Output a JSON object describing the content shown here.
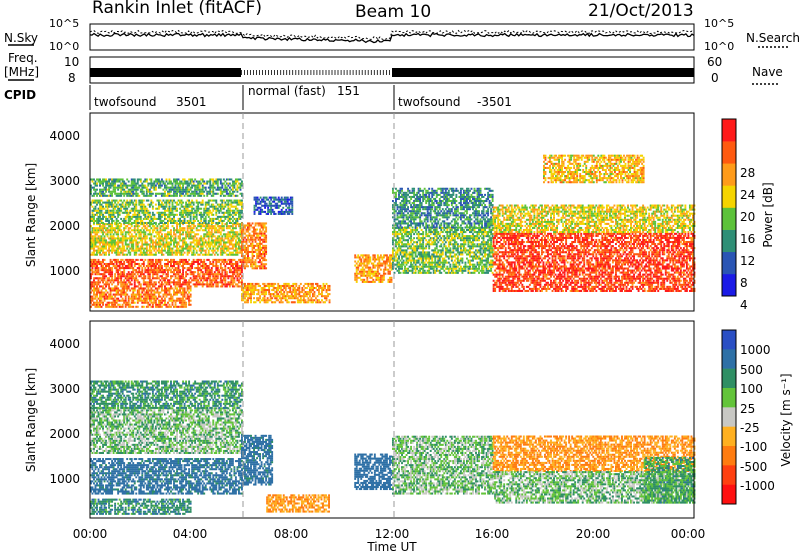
{
  "header": {
    "title": "Rankin Inlet (fitACF)",
    "beam": "Beam 10",
    "date": "21/Oct/2013"
  },
  "top_panels": {
    "nsky_label": "N.Sky",
    "nsearch_label": "N.Search",
    "nsky_ticks": [
      "10^5",
      "10^0"
    ],
    "nsearch_ticks": [
      "10^5",
      "10^0"
    ],
    "freq_label_1": "Freq.",
    "freq_label_2": "[MHz]",
    "freq_ticks": [
      "10",
      "8"
    ],
    "nave_label": "Nave",
    "nave_ticks": [
      "60",
      "0"
    ],
    "cpid_label": "CPID",
    "modes": [
      {
        "name": "twofsound",
        "id": "3501",
        "start": 0,
        "end": 6
      },
      {
        "name": "normal (fast)",
        "id": "151",
        "start": 6,
        "end": 12
      },
      {
        "name": "twofsound",
        "id": "-3501",
        "start": 12,
        "end": 24
      }
    ]
  },
  "power_colorbar": {
    "label": "Power [dB]",
    "ticks": [
      "28",
      "24",
      "20",
      "16",
      "12",
      "8",
      "4"
    ],
    "colors": [
      "#1b1be6",
      "#2a55b4",
      "#2f8f76",
      "#5cc23a",
      "#f5d400",
      "#ff9b1a",
      "#ff5a10",
      "#ff1a1a"
    ]
  },
  "velocity_colorbar": {
    "label": "Velocity [m s⁻¹]",
    "ticks": [
      "1000",
      "500",
      "100",
      "25",
      "-25",
      "-100",
      "-500",
      "-1000"
    ],
    "colors": [
      "#2a4fc4",
      "#2e70a6",
      "#2f8f64",
      "#63c43a",
      "#c8c8c4",
      "#ffb020",
      "#ff7c10",
      "#ff4010",
      "#ff1010"
    ]
  },
  "axes": {
    "ylabel": "Slant Range [km]",
    "xlabel": "Time UT",
    "yticks": [
      "4000",
      "3000",
      "2000",
      "1000"
    ],
    "xticks": [
      "00:00",
      "04:00",
      "08:00",
      "12:00",
      "16:00",
      "20:00",
      "00:00"
    ]
  },
  "chart_data": [
    {
      "type": "heatmap",
      "name": "power",
      "x_range_hours": [
        0,
        24
      ],
      "y_range_km": [
        180,
        4550
      ],
      "x_tick_hours": [
        0,
        4,
        8,
        12,
        16,
        20,
        24
      ],
      "y_tick_km": [
        1000,
        2000,
        3000,
        4000
      ],
      "colorbar_range_db": [
        0,
        32
      ],
      "regions": [
        {
          "t": [
            0,
            6
          ],
          "r": [
            700,
            1300
          ],
          "power_db": 26
        },
        {
          "t": [
            0,
            6
          ],
          "r": [
            1400,
            2100
          ],
          "power_db": 18
        },
        {
          "t": [
            0,
            6
          ],
          "r": [
            2100,
            2600
          ],
          "power_db": 14
        },
        {
          "t": [
            0,
            6
          ],
          "r": [
            2700,
            3100
          ],
          "power_db": 12
        },
        {
          "t": [
            0,
            4
          ],
          "r": [
            250,
            700
          ],
          "power_db": 24
        },
        {
          "t": [
            6,
            7
          ],
          "r": [
            1100,
            2100
          ],
          "power_db": 24
        },
        {
          "t": [
            6,
            9.5
          ],
          "r": [
            350,
            800
          ],
          "power_db": 22
        },
        {
          "t": [
            6.5,
            8
          ],
          "r": [
            2300,
            2700
          ],
          "power_db": 6
        },
        {
          "t": [
            10.5,
            12
          ],
          "r": [
            800,
            1400
          ],
          "power_db": 22
        },
        {
          "t": [
            12,
            16
          ],
          "r": [
            1000,
            2000
          ],
          "power_db": 14
        },
        {
          "t": [
            12,
            16
          ],
          "r": [
            2000,
            2900
          ],
          "power_db": 10
        },
        {
          "t": [
            16,
            24
          ],
          "r": [
            600,
            1900
          ],
          "power_db": 28
        },
        {
          "t": [
            16,
            24
          ],
          "r": [
            1900,
            2500
          ],
          "power_db": 18
        },
        {
          "t": [
            18,
            22
          ],
          "r": [
            3000,
            3600
          ],
          "power_db": 20
        }
      ]
    },
    {
      "type": "heatmap",
      "name": "velocity",
      "x_range_hours": [
        0,
        24
      ],
      "y_range_km": [
        180,
        4550
      ],
      "x_tick_hours": [
        0,
        4,
        8,
        12,
        16,
        20,
        24
      ],
      "y_tick_km": [
        1000,
        2000,
        3000,
        4000
      ],
      "colorbar_range_ms": [
        -1000,
        1000
      ],
      "regions": [
        {
          "t": [
            0,
            6
          ],
          "r": [
            1600,
            2600
          ],
          "velocity_ms": 0
        },
        {
          "t": [
            0,
            6
          ],
          "r": [
            700,
            1500
          ],
          "velocity_ms": 150
        },
        {
          "t": [
            0,
            6
          ],
          "r": [
            2600,
            3200
          ],
          "velocity_ms": 60
        },
        {
          "t": [
            0,
            4
          ],
          "r": [
            250,
            600
          ],
          "velocity_ms": 80
        },
        {
          "t": [
            6,
            7.2
          ],
          "r": [
            900,
            2000
          ],
          "velocity_ms": 150
        },
        {
          "t": [
            7,
            9.5
          ],
          "r": [
            300,
            700
          ],
          "velocity_ms": -300
        },
        {
          "t": [
            10.5,
            12
          ],
          "r": [
            800,
            1600
          ],
          "velocity_ms": 400
        },
        {
          "t": [
            12,
            16
          ],
          "r": [
            700,
            2000
          ],
          "velocity_ms": 0
        },
        {
          "t": [
            16,
            24
          ],
          "r": [
            1200,
            2000
          ],
          "velocity_ms": -300
        },
        {
          "t": [
            16,
            24
          ],
          "r": [
            500,
            1200
          ],
          "velocity_ms": 0
        },
        {
          "t": [
            22,
            24
          ],
          "r": [
            500,
            1500
          ],
          "velocity_ms": 40
        }
      ]
    }
  ]
}
